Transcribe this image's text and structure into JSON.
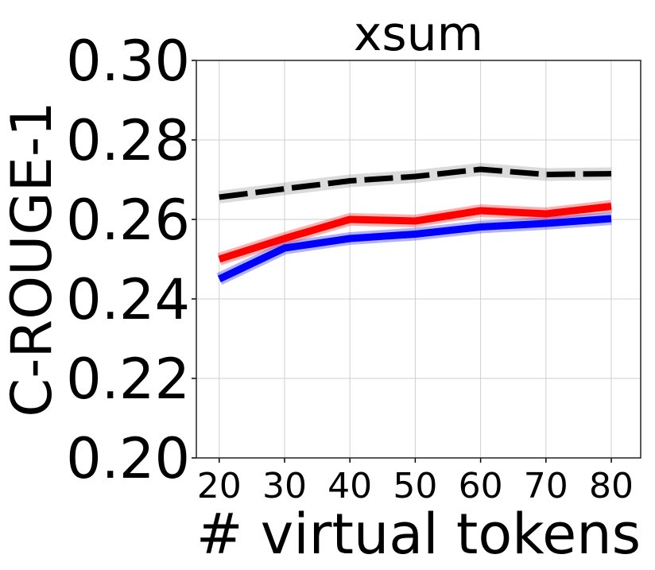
{
  "chart_data": {
    "type": "line",
    "title": "xsum",
    "xlabel": "# virtual tokens",
    "ylabel": "C-ROUGE-1",
    "x": [
      20,
      30,
      40,
      50,
      60,
      70,
      80
    ],
    "xlim": [
      16.5,
      84.5
    ],
    "ylim": [
      0.2,
      0.3
    ],
    "xticks": [
      "20",
      "30",
      "40",
      "50",
      "60",
      "70",
      "80"
    ],
    "yticks": [
      "0.20",
      "0.22",
      "0.24",
      "0.26",
      "0.28",
      "0.30"
    ],
    "grid": true,
    "series": [
      {
        "color": "#0000ff",
        "style": "solid",
        "values": [
          0.245,
          0.2528,
          0.2552,
          0.2563,
          0.2581,
          0.259,
          0.2602
        ]
      },
      {
        "color": "#ff0000",
        "style": "solid",
        "values": [
          0.25,
          0.2552,
          0.26,
          0.2596,
          0.2622,
          0.2614,
          0.2633
        ]
      },
      {
        "color": "#000000",
        "style": "dashed",
        "values": [
          0.2656,
          0.2677,
          0.2697,
          0.2708,
          0.2726,
          0.2713,
          0.2715
        ]
      }
    ]
  }
}
